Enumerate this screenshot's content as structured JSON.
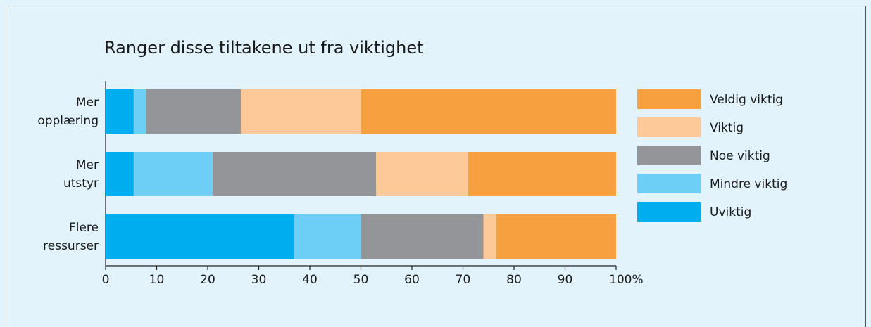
{
  "chart_data": {
    "type": "stacked-bar-horizontal",
    "title": "Ranger disse tiltakene ut fra viktighet",
    "categories": [
      "Mer\nopplæring",
      "Mer\nutstyr",
      "Flere\nressurser"
    ],
    "series": [
      {
        "name": "Uviktig",
        "color": "#00aeef",
        "values": [
          5.5,
          5.5,
          37
        ]
      },
      {
        "name": "Mindre viktig",
        "color": "#6dcff6",
        "values": [
          2.5,
          15.5,
          13
        ]
      },
      {
        "name": "Noe viktig",
        "color": "#939598",
        "values": [
          18.5,
          32,
          24
        ]
      },
      {
        "name": "Viktig",
        "color": "#fdc998",
        "values": [
          23.5,
          18,
          2.5
        ]
      },
      {
        "name": "Veldig viktig",
        "color": "#f7a03f",
        "values": [
          50,
          29,
          23.5
        ]
      }
    ],
    "xlim": [
      0,
      100
    ],
    "xticks": [
      0,
      10,
      20,
      30,
      40,
      50,
      60,
      70,
      80,
      90,
      {
        "value": 100,
        "label": "100%"
      }
    ],
    "legend": "right"
  }
}
